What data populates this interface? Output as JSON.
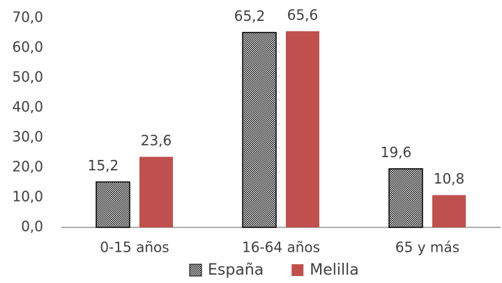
{
  "chart_data": {
    "type": "bar",
    "categories": [
      "0-15 años",
      "16-64 años",
      "65 y más"
    ],
    "series": [
      {
        "name": "España",
        "color": "#000000",
        "pattern": "dotted",
        "values": [
          15.2,
          65.2,
          19.6
        ],
        "value_labels": [
          "15,2",
          "65,2",
          "19,6"
        ]
      },
      {
        "name": "Melilla",
        "color": "#c0504d",
        "values": [
          23.6,
          65.6,
          10.8
        ],
        "value_labels": [
          "23,6",
          "65,6",
          "10,8"
        ]
      }
    ],
    "ylim": [
      0,
      70
    ],
    "yticks": [
      {
        "value": 0,
        "label": "0,0"
      },
      {
        "value": 10,
        "label": "10,0"
      },
      {
        "value": 20,
        "label": "20,0"
      },
      {
        "value": 30,
        "label": "30,0"
      },
      {
        "value": 40,
        "label": "40,0"
      },
      {
        "value": 50,
        "label": "50,0"
      },
      {
        "value": 60,
        "label": "60,0"
      },
      {
        "value": 70,
        "label": "70,0"
      }
    ],
    "legend": "bottom"
  }
}
